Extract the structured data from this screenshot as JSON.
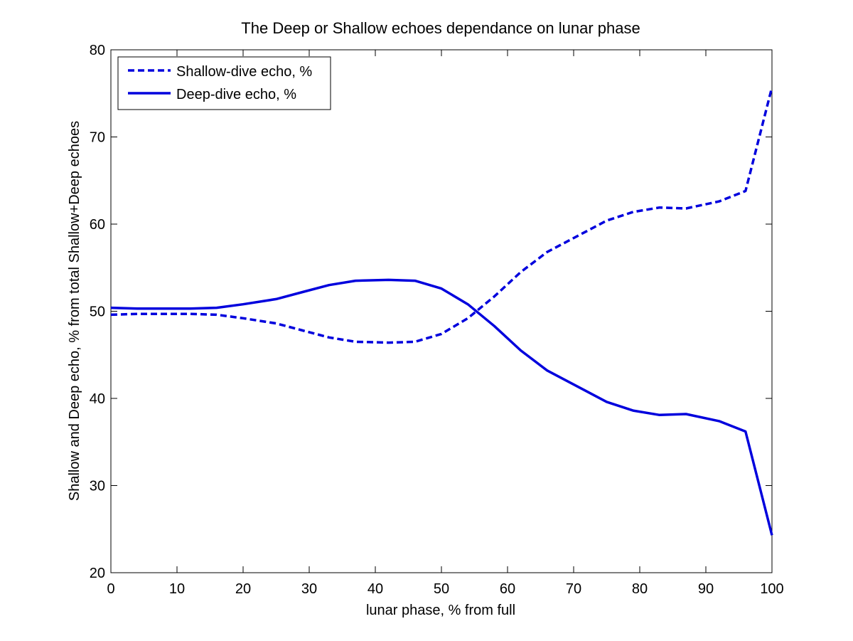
{
  "chart_data": {
    "type": "line",
    "title": "The Deep or Shallow echoes dependance on lunar phase",
    "xlabel": "lunar phase, % from full",
    "ylabel": "Shallow and Deep echo, % from total Shallow+Deep echoes",
    "xlim": [
      0,
      100
    ],
    "ylim": [
      20,
      80
    ],
    "xticks": [
      0,
      10,
      20,
      30,
      40,
      50,
      60,
      70,
      80,
      90,
      100
    ],
    "yticks": [
      20,
      30,
      40,
      50,
      60,
      70,
      80
    ],
    "grid": false,
    "legend_position": "top-left",
    "line_color": "#0000dd",
    "series": [
      {
        "name": "Shallow-dive echo, %",
        "style": "dashed",
        "x": [
          0,
          4,
          8,
          12,
          16,
          20,
          25,
          29,
          33,
          37,
          42,
          46,
          50,
          54,
          58,
          62,
          66,
          71,
          75,
          79,
          83,
          87,
          92,
          96,
          100
        ],
        "y": [
          49.6,
          49.7,
          49.7,
          49.7,
          49.6,
          49.2,
          48.6,
          47.8,
          47.0,
          46.5,
          46.4,
          46.5,
          47.4,
          49.2,
          51.7,
          54.5,
          56.8,
          58.8,
          60.4,
          61.4,
          61.9,
          61.8,
          62.6,
          63.8,
          75.7
        ]
      },
      {
        "name": "Deep-dive echo, %",
        "style": "solid",
        "x": [
          0,
          4,
          8,
          12,
          16,
          20,
          25,
          29,
          33,
          37,
          42,
          46,
          50,
          54,
          58,
          62,
          66,
          71,
          75,
          79,
          83,
          87,
          92,
          96,
          100
        ],
        "y": [
          50.4,
          50.3,
          50.3,
          50.3,
          50.4,
          50.8,
          51.4,
          52.2,
          53.0,
          53.5,
          53.6,
          53.5,
          52.6,
          50.8,
          48.3,
          45.5,
          43.2,
          41.2,
          39.6,
          38.6,
          38.1,
          38.2,
          37.4,
          36.2,
          24.3
        ]
      }
    ]
  }
}
